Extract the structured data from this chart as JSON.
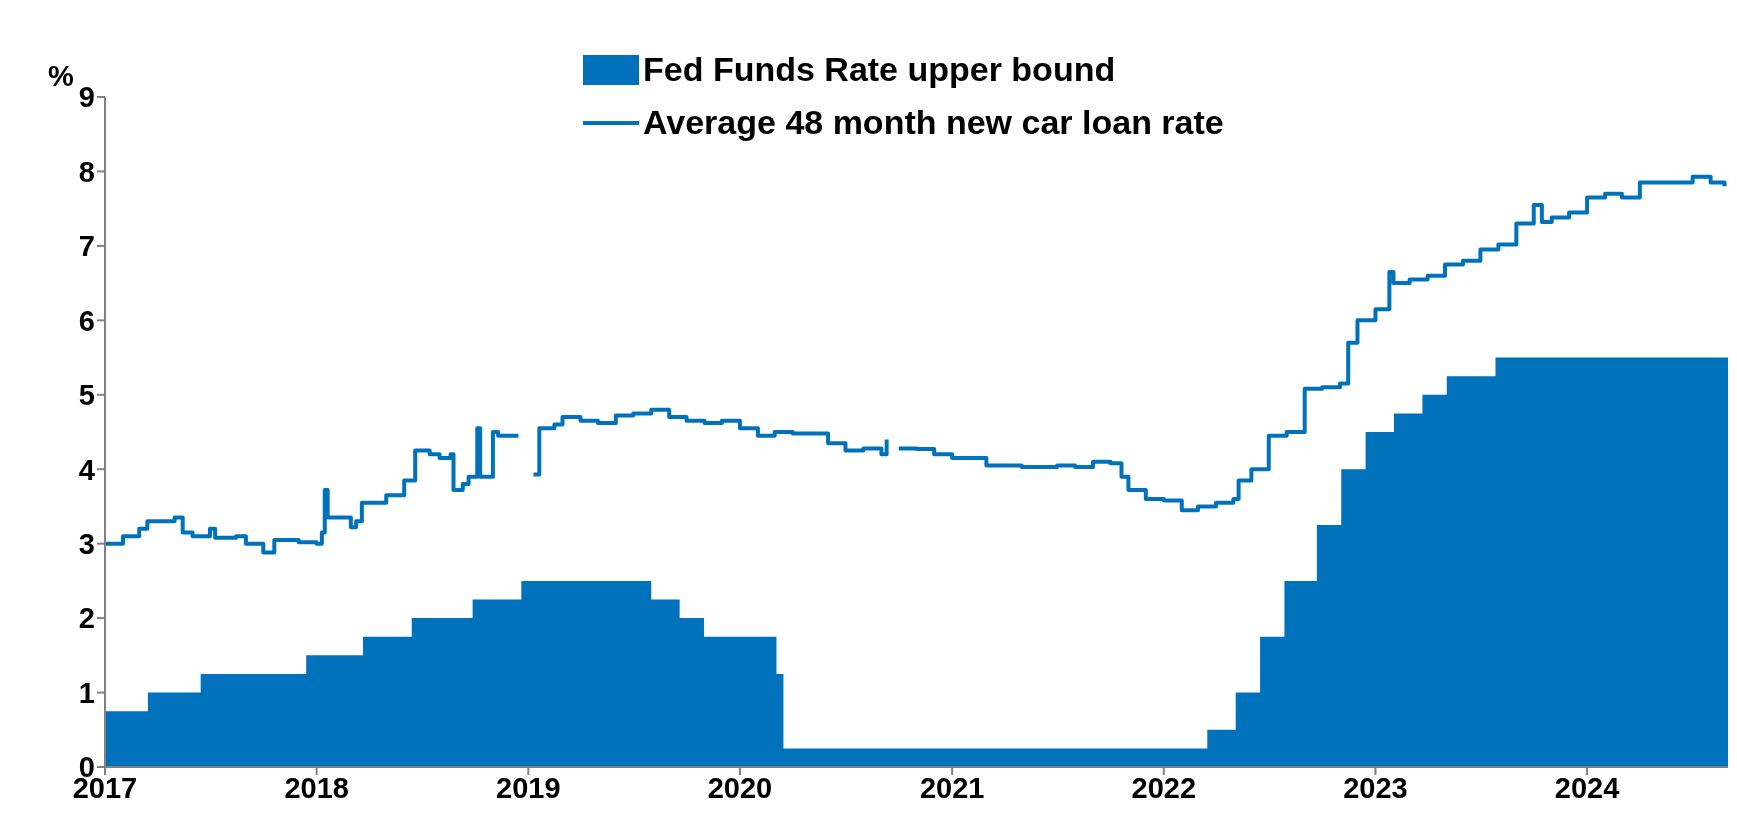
{
  "chart_data": {
    "type": "step",
    "ylabel": "%",
    "legend": "top",
    "grid": false,
    "xlim": [
      "2017-01-01",
      "2024-08-31"
    ],
    "xticks": [
      "2017",
      "2018",
      "2019",
      "2020",
      "2021",
      "2022",
      "2023",
      "2024"
    ],
    "ylim": [
      0,
      9
    ],
    "yticks": [
      0,
      1,
      2,
      3,
      4,
      5,
      6,
      7,
      8,
      9
    ],
    "series": [
      {
        "name": "Fed Funds Rate upper bound",
        "type": "area",
        "color": "#0072bc",
        "x": [
          "2017-01-01",
          "2017-03-16",
          "2017-06-15",
          "2017-12-14",
          "2018-03-22",
          "2018-06-14",
          "2018-09-27",
          "2018-12-20",
          "2019-08-01",
          "2019-09-19",
          "2019-10-31",
          "2020-03-04",
          "2020-03-16",
          "2022-03-17",
          "2022-05-05",
          "2022-06-16",
          "2022-07-28",
          "2022-09-22",
          "2022-11-03",
          "2022-12-15",
          "2023-02-02",
          "2023-03-23",
          "2023-05-04",
          "2023-07-27",
          "2024-08-31"
        ],
        "values": [
          0.75,
          1.0,
          1.25,
          1.5,
          1.75,
          2.0,
          2.25,
          2.5,
          2.25,
          2.0,
          1.75,
          1.25,
          0.25,
          0.5,
          1.0,
          1.75,
          2.5,
          3.25,
          4.0,
          4.5,
          4.75,
          5.0,
          5.25,
          5.5,
          5.5
        ]
      },
      {
        "name": "Average 48 month new car loan rate",
        "color": "#0072bc",
        "x": [
          "2017-01-01",
          "2017-02-01",
          "2017-03-01",
          "2017-03-15",
          "2017-05-01",
          "2017-05-15",
          "2017-06-01",
          "2017-07-01",
          "2017-07-10",
          "2017-08-15",
          "2017-09-01",
          "2017-10-01",
          "2017-10-20",
          "2017-12-01",
          "2018-01-01",
          "2018-01-10",
          "2018-01-15",
          "2018-01-20",
          "2018-03-01",
          "2018-03-10",
          "2018-03-20",
          "2018-04-15",
          "2018-05-01",
          "2018-06-01",
          "2018-06-20",
          "2018-07-15",
          "2018-08-01",
          "2018-08-20",
          "2018-08-25",
          "2018-09-10",
          "2018-09-20",
          "2018-10-05",
          "2018-10-10",
          "2018-10-25",
          "2018-11-01",
          "2018-11-10",
          "2018-12-15",
          "2018-12-25",
          "2019-01-10",
          "2019-01-20",
          "2019-02-15",
          "2019-03-01",
          "2019-04-01",
          "2019-05-01",
          "2019-06-01",
          "2019-07-01",
          "2019-08-01",
          "2019-09-01",
          "2019-10-01",
          "2019-11-01",
          "2019-12-01",
          "2020-01-01",
          "2020-02-01",
          "2020-03-01",
          "2020-04-01",
          "2020-05-01",
          "2020-06-01",
          "2020-07-01",
          "2020-08-01",
          "2020-09-01",
          "2020-09-10",
          "2020-09-20",
          "2020-10-01",
          "2020-11-01",
          "2020-12-01",
          "2021-01-01",
          "2021-02-01",
          "2021-03-01",
          "2021-05-01",
          "2021-07-01",
          "2021-08-01",
          "2021-09-01",
          "2021-10-01",
          "2021-10-20",
          "2021-11-01",
          "2021-12-01",
          "2022-01-01",
          "2022-02-01",
          "2022-03-01",
          "2022-04-01",
          "2022-05-01",
          "2022-05-10",
          "2022-06-01",
          "2022-07-01",
          "2022-08-01",
          "2022-09-01",
          "2022-10-01",
          "2022-11-01",
          "2022-11-15",
          "2022-12-01",
          "2023-01-01",
          "2023-01-25",
          "2023-02-01",
          "2023-03-01",
          "2023-04-01",
          "2023-05-01",
          "2023-06-01",
          "2023-07-01",
          "2023-08-01",
          "2023-09-01",
          "2023-10-01",
          "2023-10-15",
          "2023-11-01",
          "2023-12-01",
          "2024-01-01",
          "2024-02-01",
          "2024-03-01",
          "2024-04-01",
          "2024-05-01",
          "2024-06-01",
          "2024-07-01",
          "2024-08-01",
          "2024-08-25"
        ],
        "values": [
          3.0,
          3.1,
          3.2,
          3.3,
          3.35,
          3.15,
          3.1,
          3.2,
          3.08,
          3.1,
          3.0,
          2.88,
          3.05,
          3.02,
          3.0,
          3.15,
          3.72,
          3.35,
          3.22,
          3.3,
          3.55,
          3.55,
          3.65,
          3.85,
          4.25,
          4.2,
          4.15,
          4.2,
          3.72,
          3.8,
          3.9,
          4.55,
          3.9,
          3.9,
          4.5,
          4.45,
          4.45,
          null,
          3.93,
          4.55,
          4.6,
          4.7,
          4.65,
          4.62,
          4.72,
          4.75,
          4.8,
          4.7,
          4.65,
          4.62,
          4.65,
          4.55,
          4.45,
          4.5,
          4.48,
          4.48,
          4.35,
          4.25,
          4.28,
          4.2,
          4.4,
          null,
          4.28,
          4.27,
          4.2,
          4.15,
          4.15,
          4.05,
          4.03,
          4.05,
          4.03,
          4.1,
          4.08,
          3.9,
          3.72,
          3.6,
          3.58,
          3.45,
          3.5,
          3.55,
          3.6,
          3.85,
          4.0,
          4.45,
          4.5,
          5.08,
          5.1,
          5.15,
          5.7,
          6.0,
          6.15,
          6.65,
          6.5,
          6.55,
          6.6,
          6.75,
          6.8,
          6.95,
          7.02,
          7.3,
          7.55,
          7.32,
          7.38,
          7.45,
          7.65,
          7.7,
          7.65,
          7.85,
          7.85,
          7.85,
          7.93,
          7.85,
          7.8
        ]
      }
    ]
  }
}
